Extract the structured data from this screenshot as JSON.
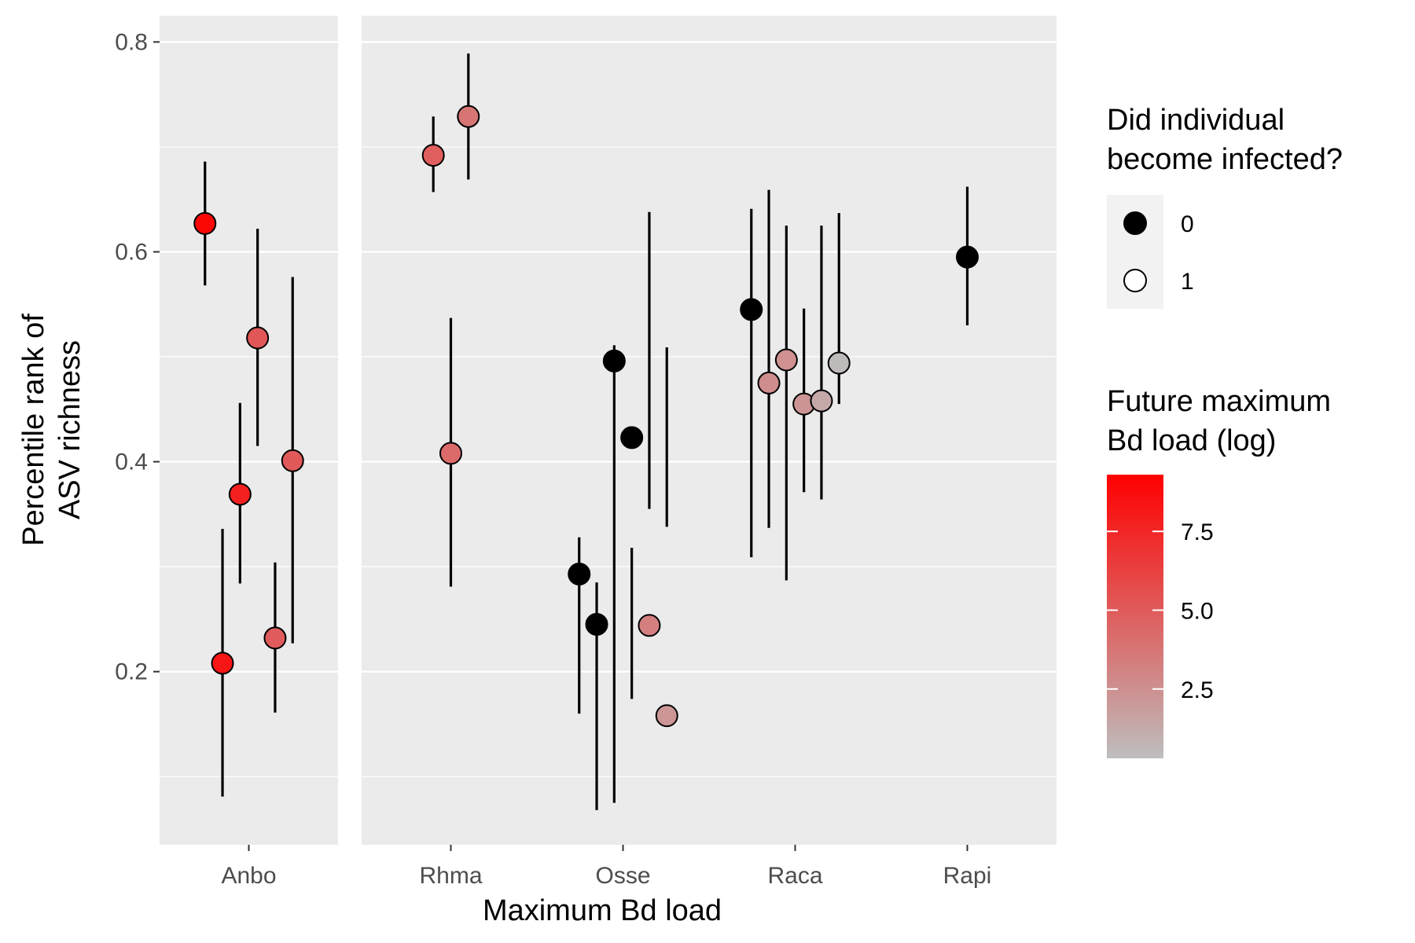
{
  "chart_data": {
    "type": "scatter",
    "xlabel": "Maximum Bd load",
    "ylabel_lines": [
      "Percentile rank of",
      "ASV richness"
    ],
    "ylim": [
      0.035,
      0.825
    ],
    "yticks": [
      0.2,
      0.4,
      0.6,
      0.8
    ],
    "ytick_labels": [
      "0.2",
      "0.4",
      "0.6",
      "0.8"
    ],
    "panel_background": "#ebebeb",
    "grid_color": "#ffffff",
    "panels": [
      {
        "label": "Anbo",
        "points": [
          {
            "y": 0.627,
            "lo": 0.568,
            "hi": 0.686,
            "infected": 1,
            "load": 9.0
          },
          {
            "y": 0.208,
            "lo": 0.081,
            "hi": 0.336,
            "infected": 1,
            "load": 8.3
          },
          {
            "y": 0.369,
            "lo": 0.284,
            "hi": 0.456,
            "infected": 1,
            "load": 7.8
          },
          {
            "y": 0.518,
            "lo": 0.415,
            "hi": 0.622,
            "infected": 1,
            "load": 5.2
          },
          {
            "y": 0.232,
            "lo": 0.161,
            "hi": 0.304,
            "infected": 1,
            "load": 5.0
          },
          {
            "y": 0.401,
            "lo": 0.227,
            "hi": 0.576,
            "infected": 1,
            "load": 5.1
          }
        ]
      },
      {
        "label": "Rhma",
        "points": [
          {
            "y": 0.692,
            "lo": 0.657,
            "hi": 0.729,
            "infected": 1,
            "load": 4.8
          },
          {
            "y": 0.408,
            "lo": 0.281,
            "hi": 0.537,
            "infected": 1,
            "load": 4.3
          },
          {
            "y": 0.729,
            "lo": 0.669,
            "hi": 0.789,
            "infected": 1,
            "load": 3.8
          }
        ]
      },
      {
        "label": "Osse",
        "points": [
          {
            "y": 0.293,
            "lo": 0.16,
            "hi": 0.328,
            "infected": 0,
            "load": null
          },
          {
            "y": 0.245,
            "lo": 0.068,
            "hi": 0.285,
            "infected": 0,
            "load": null
          },
          {
            "y": 0.496,
            "lo": 0.075,
            "hi": 0.511,
            "infected": 0,
            "load": null
          },
          {
            "y": 0.423,
            "lo": 0.174,
            "hi": 0.318,
            "infected": 0,
            "load": null
          },
          {
            "y": 0.244,
            "lo": 0.355,
            "hi": 0.638,
            "infected": 1,
            "load": 3.3
          },
          {
            "y": 0.158,
            "lo": 0.338,
            "hi": 0.509,
            "infected": 1,
            "load": 2.2
          }
        ]
      },
      {
        "label": "Raca",
        "points": [
          {
            "y": 0.545,
            "lo": 0.309,
            "hi": 0.641,
            "infected": 0,
            "load": null
          },
          {
            "y": 0.475,
            "lo": 0.337,
            "hi": 0.659,
            "infected": 1,
            "load": 2.6
          },
          {
            "y": 0.497,
            "lo": 0.287,
            "hi": 0.625,
            "infected": 1,
            "load": 2.5
          },
          {
            "y": 0.455,
            "lo": 0.371,
            "hi": 0.546,
            "infected": 1,
            "load": 2.3
          },
          {
            "y": 0.458,
            "lo": 0.364,
            "hi": 0.625,
            "infected": 1,
            "load": 1.3
          },
          {
            "y": 0.494,
            "lo": 0.455,
            "hi": 0.637,
            "infected": 1,
            "load": 0.5
          }
        ]
      },
      {
        "label": "Rapi",
        "points": [
          {
            "y": 0.595,
            "lo": 0.53,
            "hi": 0.662,
            "infected": 0,
            "load": null
          }
        ]
      }
    ],
    "legend_infected": {
      "title_lines": [
        "Did individual",
        "become infected?"
      ],
      "items": [
        {
          "label": "0",
          "fill": "#000000"
        },
        {
          "label": "1",
          "fill": "#ffffff"
        }
      ]
    },
    "legend_load": {
      "title_lines": [
        "Future maximum",
        " Bd load (log)"
      ],
      "range": [
        0.3,
        9.3
      ],
      "ticks": [
        2.5,
        5.0,
        7.5
      ],
      "tick_labels": [
        "2.5",
        "5.0",
        "7.5"
      ],
      "low_color": "#bebebe",
      "high_color": "#ff0000"
    }
  }
}
